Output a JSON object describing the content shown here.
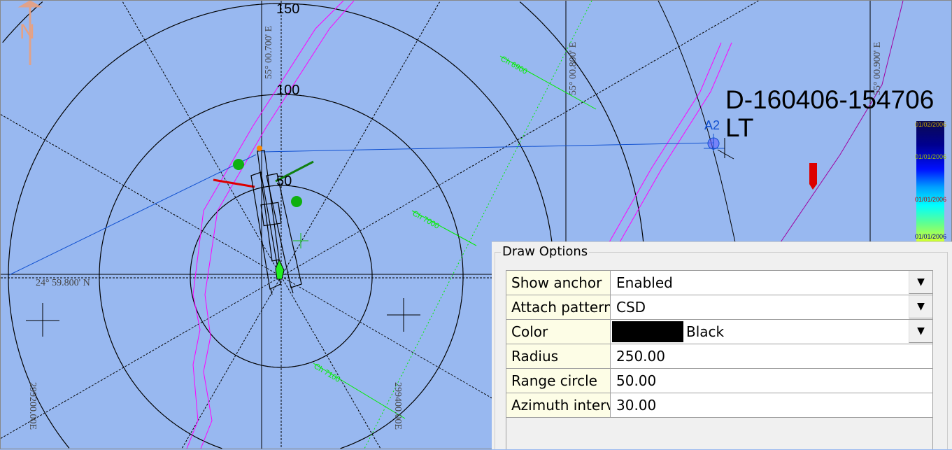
{
  "map": {
    "north_label": "N",
    "range_labels": [
      "50",
      "100",
      "150"
    ],
    "longitude_labels": [
      "55° 00.700' E",
      "55° 00.800' E",
      "55° 00.900' E"
    ],
    "latitude_label": "24° 59.800' N",
    "easting_labels": [
      "299200.00E",
      "299400.00E"
    ],
    "chainage_labels": [
      "Ch 6900",
      "Ch 7000",
      "Ch 7100"
    ],
    "anchor_label": "A2",
    "vessel_label": "D-160406-154706 LT",
    "legend_labels": [
      "01/02/2006",
      "01/01/2006",
      "01/01/2006",
      "01/01/2006"
    ],
    "colors": {
      "water": "#98b8f0",
      "pipeline": "#ff00ff",
      "chainage": "#00ee00",
      "anchor_line": "#1050d0",
      "target": "#dd0000"
    }
  },
  "draw_options": {
    "title": "Draw Options",
    "rows": [
      {
        "label": "Show anchor",
        "value": "Enabled",
        "dropdown": true
      },
      {
        "label": "Attach pattern",
        "value": "CSD",
        "dropdown": true
      },
      {
        "label": "Color",
        "value": "Black",
        "dropdown": true,
        "swatch": "#000000"
      },
      {
        "label": "Radius",
        "value": "250.00"
      },
      {
        "label": "Range circle",
        "value": "50.00"
      },
      {
        "label": "Azimuth interval",
        "value": "30.00"
      }
    ]
  }
}
